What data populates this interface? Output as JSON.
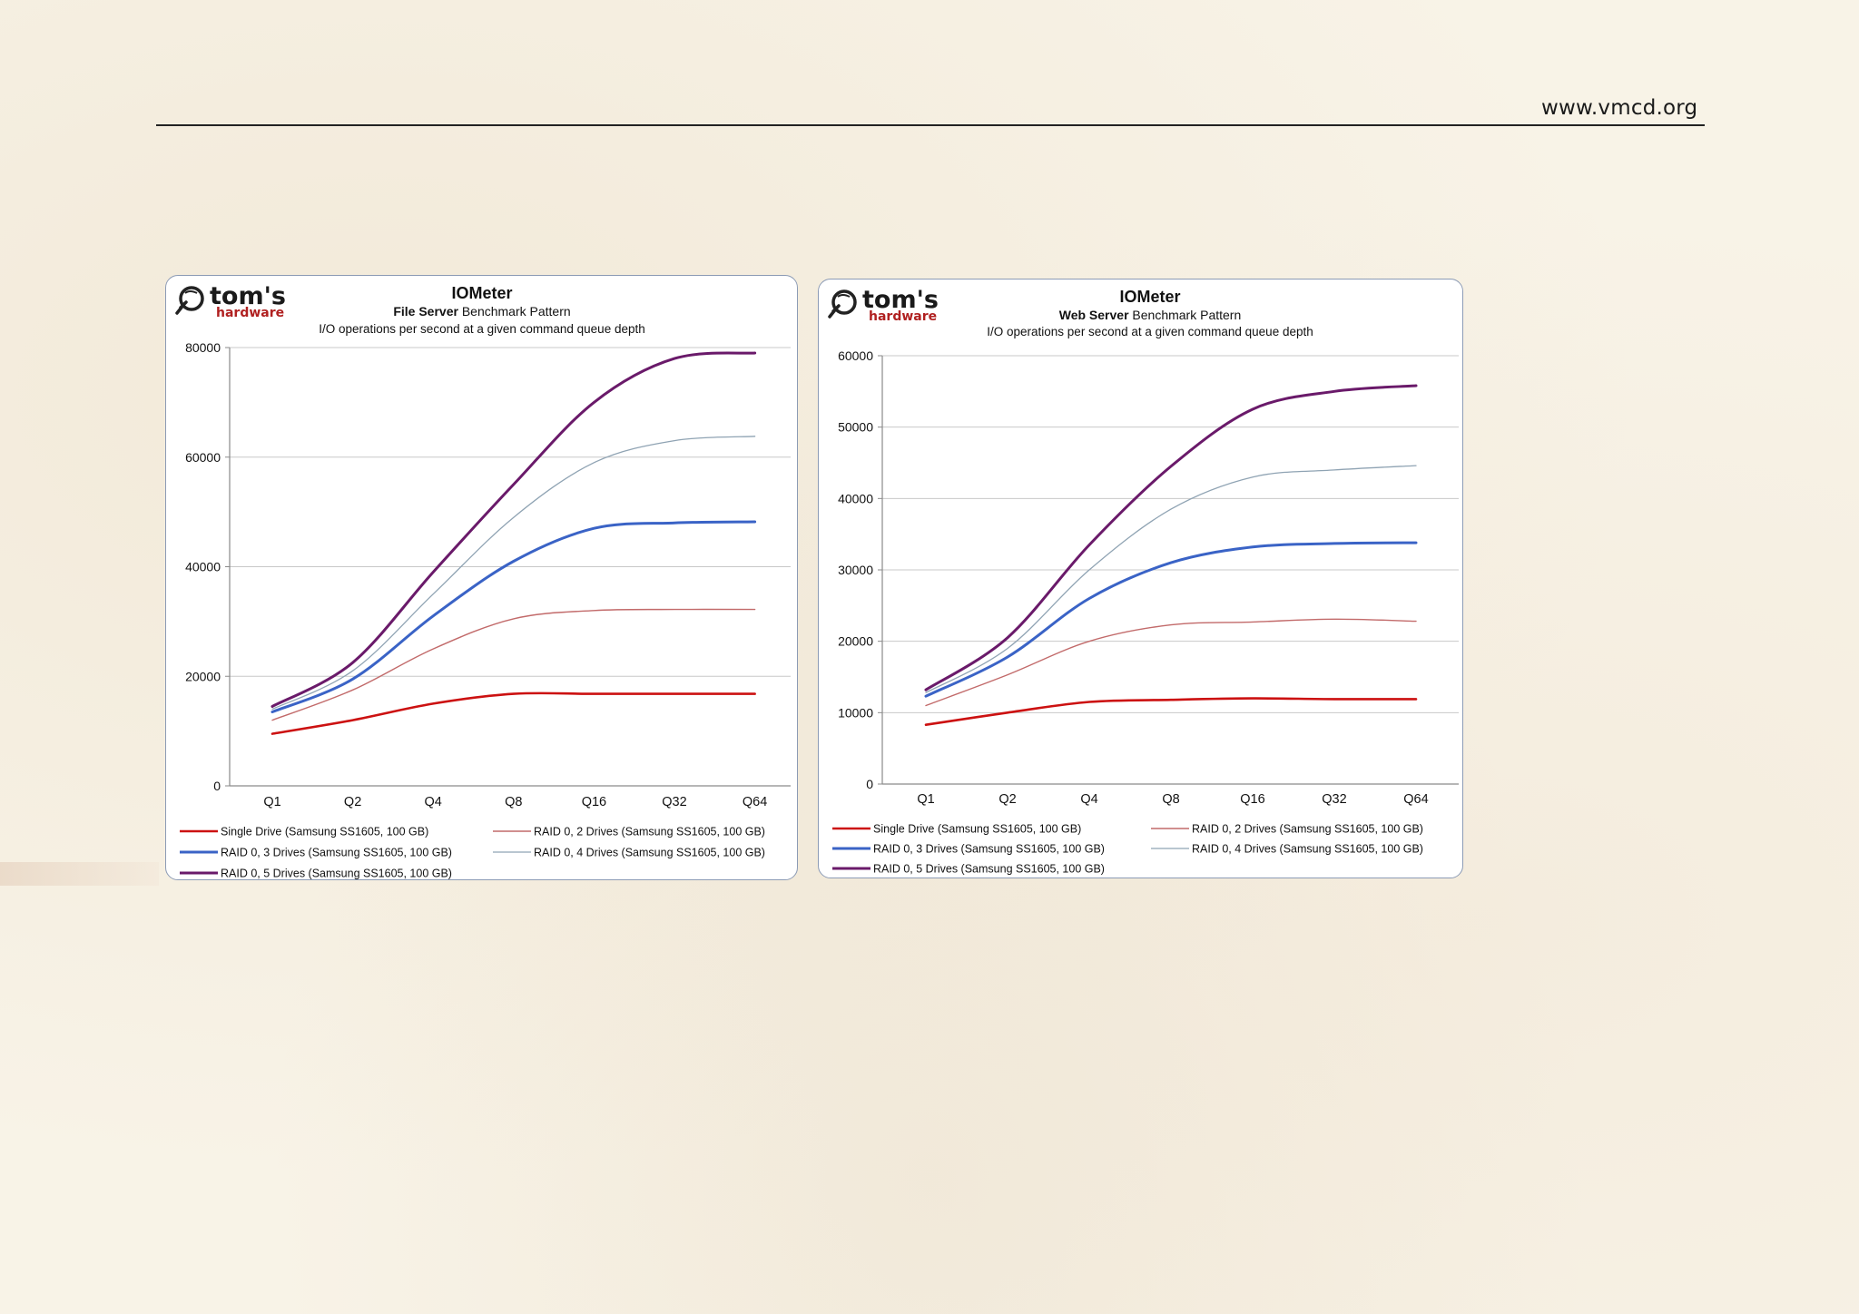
{
  "header": {
    "site": "www.vmcd.org"
  },
  "logo": {
    "name": "tom's",
    "sub": "hardware",
    "icon": "magnifier-icon"
  },
  "colors": {
    "grid": "#c8c8c8",
    "axis": "#8a8a8a",
    "series": [
      "#cc1111",
      "#c26a6a",
      "#3a63c6",
      "#8fa3b3",
      "#6a1a6a"
    ]
  },
  "chart_data": [
    {
      "type": "line",
      "title": "IOMeter",
      "subtitle_bold": "File Server",
      "subtitle_rest": "Benchmark Pattern",
      "subtitle2": "I/O operations per second at a given command queue depth",
      "categories": [
        "Q1",
        "Q2",
        "Q4",
        "Q8",
        "Q16",
        "Q32",
        "Q64"
      ],
      "yticks": [
        "0",
        "20000",
        "40000",
        "60000",
        "80000"
      ],
      "ylim": [
        0,
        80000
      ],
      "grid": true,
      "legend_position": "bottom",
      "series": [
        {
          "name": "Single Drive (Samsung SS1605, 100 GB)",
          "values": [
            9500,
            12000,
            15000,
            16800,
            16800,
            16800,
            16800
          ]
        },
        {
          "name": "RAID 0, 2 Drives (Samsung SS1605, 100 GB)",
          "values": [
            12000,
            17500,
            25000,
            30500,
            32000,
            32200,
            32200
          ]
        },
        {
          "name": "RAID 0, 3 Drives (Samsung SS1605, 100 GB)",
          "values": [
            13500,
            19500,
            31000,
            41000,
            47000,
            48000,
            48200
          ]
        },
        {
          "name": "RAID 0, 4 Drives (Samsung SS1605, 100 GB)",
          "values": [
            14000,
            21000,
            35000,
            49000,
            59000,
            63000,
            63800
          ]
        },
        {
          "name": "RAID 0, 5 Drives (Samsung SS1605, 100 GB)",
          "values": [
            14500,
            22500,
            39000,
            55000,
            70000,
            78000,
            79000
          ]
        }
      ]
    },
    {
      "type": "line",
      "title": "IOMeter",
      "subtitle_bold": "Web Server",
      "subtitle_rest": "Benchmark Pattern",
      "subtitle2": "I/O operations per second at a given command queue depth",
      "categories": [
        "Q1",
        "Q2",
        "Q4",
        "Q8",
        "Q16",
        "Q32",
        "Q64"
      ],
      "yticks": [
        "0",
        "10000",
        "20000",
        "30000",
        "40000",
        "50000",
        "60000"
      ],
      "ylim": [
        0,
        60000
      ],
      "grid": true,
      "legend_position": "bottom",
      "series": [
        {
          "name": "Single Drive (Samsung SS1605, 100 GB)",
          "values": [
            8300,
            10000,
            11500,
            11800,
            12000,
            11900,
            11900
          ]
        },
        {
          "name": "RAID 0, 2 Drives (Samsung SS1605, 100 GB)",
          "values": [
            11000,
            15300,
            20000,
            22300,
            22700,
            23100,
            22800
          ]
        },
        {
          "name": "RAID 0, 3 Drives (Samsung SS1605, 100 GB)",
          "values": [
            12300,
            17800,
            26000,
            31000,
            33200,
            33700,
            33800
          ]
        },
        {
          "name": "RAID 0, 4 Drives (Samsung SS1605, 100 GB)",
          "values": [
            12800,
            19000,
            30000,
            38500,
            43000,
            44000,
            44600
          ]
        },
        {
          "name": "RAID 0, 5 Drives (Samsung SS1605, 100 GB)",
          "values": [
            13200,
            20500,
            33500,
            44500,
            52500,
            55000,
            55800
          ]
        }
      ]
    }
  ]
}
